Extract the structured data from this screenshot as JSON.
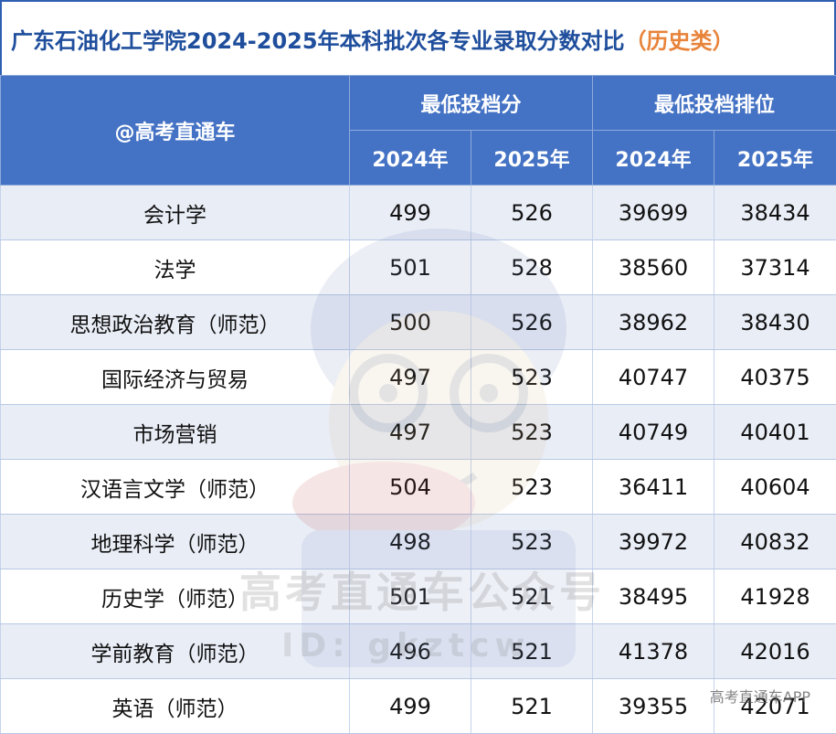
{
  "title": {
    "main": "广东石油化工学院2024-2025年本科批次各专业录取分数对比",
    "category": "（历史类）"
  },
  "header": {
    "source": "@高考直通车",
    "group_min_score": "最低投档分",
    "group_min_rank": "最低投档排位",
    "years": [
      "2024年",
      "2025年",
      "2024年",
      "2025年"
    ]
  },
  "rows": [
    {
      "major": "会计学",
      "score_2024": "499",
      "score_2025": "526",
      "rank_2024": "39699",
      "rank_2025": "38434"
    },
    {
      "major": "法学",
      "score_2024": "501",
      "score_2025": "528",
      "rank_2024": "38560",
      "rank_2025": "37314"
    },
    {
      "major": "思想政治教育（师范）",
      "score_2024": "500",
      "score_2025": "526",
      "rank_2024": "38962",
      "rank_2025": "38430"
    },
    {
      "major": "国际经济与贸易",
      "score_2024": "497",
      "score_2025": "523",
      "rank_2024": "40747",
      "rank_2025": "40375"
    },
    {
      "major": "市场营销",
      "score_2024": "497",
      "score_2025": "523",
      "rank_2024": "40749",
      "rank_2025": "40401"
    },
    {
      "major": "汉语言文学（师范）",
      "score_2024": "504",
      "score_2025": "523",
      "rank_2024": "36411",
      "rank_2025": "40604"
    },
    {
      "major": "地理科学（师范）",
      "score_2024": "498",
      "score_2025": "523",
      "rank_2024": "39972",
      "rank_2025": "40832"
    },
    {
      "major": "历史学（师范）",
      "score_2024": "501",
      "score_2025": "521",
      "rank_2024": "38495",
      "rank_2025": "41928"
    },
    {
      "major": "学前教育（师范）",
      "score_2024": "496",
      "score_2025": "521",
      "rank_2024": "41378",
      "rank_2025": "42016"
    },
    {
      "major": "英语（师范）",
      "score_2024": "499",
      "score_2025": "521",
      "rank_2024": "39355",
      "rank_2025": "42071"
    }
  ],
  "watermark": {
    "text": "高考直通车公众号",
    "id": "ID: gkztcw"
  },
  "app_mark": "高考直通车APP",
  "colors": {
    "header_bg": "#4472c4",
    "title_text": "#1f4e9c",
    "title_accent": "#e8833a",
    "row_alt": "#e9edf6"
  }
}
